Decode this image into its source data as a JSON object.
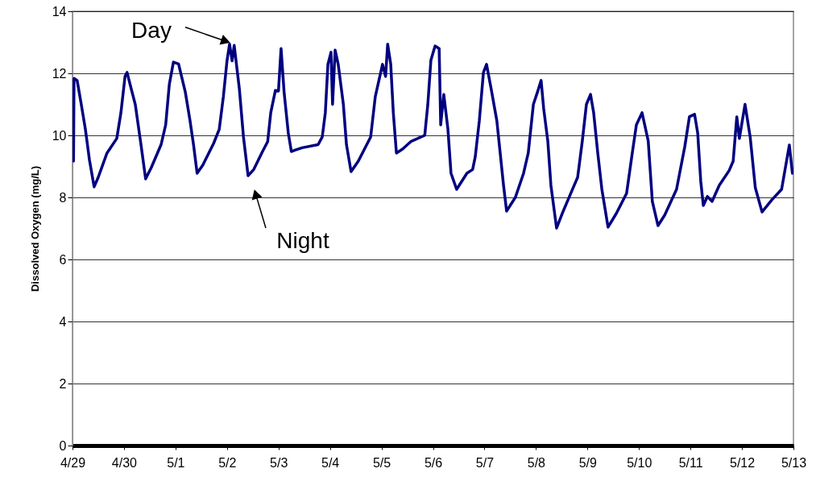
{
  "chart_data": {
    "type": "line",
    "ylabel": "Dissolved Oxygen (mg/L)",
    "x": [
      "--04-29T00:29",
      "--04-29T00:43",
      "--04-29T02:10",
      "--04-29T04:05",
      "--04-29T06:00",
      "--04-29T07:55",
      "--04-29T10:05",
      "--04-29T12:00",
      "--04-29T16:05",
      "--04-29T20:38",
      "--04-29T22:34",
      "--04-30T00:29",
      "--04-30T01:26",
      "--04-30T03:22",
      "--04-30T05:17",
      "--04-30T07:55",
      "--04-30T10:05",
      "--04-30T12:43",
      "--04-30T17:17",
      "--04-30T19:26",
      "--04-30T21:07",
      "--04-30T23:02",
      "--05-01T01:26",
      "--05-01T04:34",
      "--05-01T06:43",
      "--05-01T08:24",
      "--05-01T10:05",
      "--05-01T12:43",
      "--05-01T17:46",
      "--05-01T20:24",
      "--05-01T22:19",
      "--05-02T00:00",
      "--05-02T01:12",
      "--05-02T02:24",
      "--05-02T03:22",
      "--05-02T05:46",
      "--05-02T07:41",
      "--05-02T09:50",
      "--05-02T12:29",
      "--05-02T16:34",
      "--05-02T18:58",
      "--05-02T20:24",
      "--05-02T22:34",
      "--05-03T00:00",
      "--05-03T01:12",
      "--05-03T02:38",
      "--05-03T04:34",
      "--05-03T06:00",
      "--05-03T07:55",
      "--05-03T11:02",
      "--05-03T18:29",
      "--05-03T20:24",
      "--05-03T21:50",
      "--05-03T23:02",
      "--05-04T00:29",
      "--05-04T01:12",
      "--05-04T02:24",
      "--05-04T03:50",
      "--05-04T06:14",
      "--05-04T07:41",
      "--05-04T09:50",
      "--05-04T13:12",
      "--05-04T18:58",
      "--05-04T21:07",
      "--05-05T00:29",
      "--05-05T01:55",
      "--05-05T02:53",
      "--05-05T04:19",
      "--05-05T05:31",
      "--05-05T06:58",
      "--05-05T09:50",
      "--05-05T13:41",
      "--05-05T20:10",
      "--05-05T21:36",
      "--05-05T23:02",
      "--05-06T00:58",
      "--05-06T02:53",
      "--05-06T03:36",
      "--05-06T05:02",
      "--05-06T06:58",
      "--05-06T08:24",
      "--05-06T11:02",
      "--05-06T15:50",
      "--05-06T18:29",
      "--05-06T19:41",
      "--05-06T21:36",
      "--05-06T23:31",
      "--05-07T00:58",
      "--05-07T03:07",
      "--05-07T05:46",
      "--05-07T08:53",
      "--05-07T10:19",
      "--05-07T14:24",
      "--05-07T18:14",
      "--05-07T20:24",
      "--05-07T22:48",
      "--05-08T00:58",
      "--05-08T02:24",
      "--05-08T03:36",
      "--05-08T05:31",
      "--05-08T06:58",
      "--05-08T09:36",
      "--05-08T12:14",
      "--05-08T17:31",
      "--05-08T19:26",
      "--05-08T21:36",
      "--05-08T23:31",
      "--05-09T01:26",
      "--05-09T02:53",
      "--05-09T04:48",
      "--05-09T06:43",
      "--05-09T09:36",
      "--05-09T13:26",
      "--05-09T18:14",
      "--05-09T20:53",
      "--05-09T22:48",
      "--05-10T01:26",
      "--05-10T04:19",
      "--05-10T06:14",
      "--05-10T08:53",
      "--05-10T12:00",
      "--05-10T17:31",
      "--05-10T21:22",
      "--05-10T23:31",
      "--05-11T01:55",
      "--05-11T03:22",
      "--05-11T04:48",
      "--05-11T06:00",
      "--05-11T07:55",
      "--05-11T10:05",
      "--05-11T13:26",
      "--05-11T18:00",
      "--05-11T19:55",
      "--05-11T21:36",
      "--05-11T22:48",
      "--05-12T01:26",
      "--05-12T03:50",
      "--05-12T06:14",
      "--05-12T09:22",
      "--05-12T13:55",
      "--05-12T18:29",
      "--05-12T22:05",
      "--05-12T23:31"
    ],
    "series": [
      {
        "color": "#000080",
        "values": [
          9.17,
          11.84,
          11.77,
          11.0,
          10.2,
          9.2,
          8.34,
          8.65,
          9.43,
          9.9,
          10.73,
          11.9,
          12.03,
          11.5,
          10.99,
          9.7,
          8.6,
          8.96,
          9.7,
          10.34,
          11.64,
          12.36,
          12.3,
          11.4,
          10.5,
          9.7,
          8.78,
          9.04,
          9.74,
          10.2,
          11.25,
          12.4,
          12.94,
          12.4,
          12.9,
          11.5,
          9.95,
          8.7,
          8.9,
          9.48,
          9.8,
          10.73,
          11.45,
          11.43,
          12.8,
          11.38,
          10.08,
          9.48,
          9.53,
          9.6,
          9.7,
          9.95,
          10.73,
          12.29,
          12.68,
          11.0,
          12.75,
          12.29,
          11.0,
          9.7,
          8.83,
          9.17,
          9.95,
          11.25,
          12.29,
          11.9,
          12.94,
          12.29,
          10.73,
          9.43,
          9.56,
          9.8,
          10.0,
          11.0,
          12.42,
          12.88,
          12.8,
          10.34,
          11.32,
          10.2,
          8.78,
          8.26,
          8.78,
          8.9,
          9.3,
          10.47,
          12.03,
          12.29,
          11.5,
          10.47,
          8.39,
          7.56,
          8.0,
          8.78,
          9.43,
          11.0,
          11.45,
          11.77,
          10.86,
          9.82,
          8.39,
          7.01,
          7.48,
          8.34,
          8.65,
          9.82,
          11.0,
          11.32,
          10.73,
          9.43,
          8.26,
          7.04,
          7.48,
          8.13,
          9.43,
          10.34,
          10.73,
          9.82,
          7.87,
          7.09,
          7.43,
          8.26,
          9.64,
          10.6,
          10.68,
          10.08,
          8.52,
          7.74,
          8.03,
          7.87,
          8.39,
          8.86,
          9.17,
          10.6,
          9.9,
          11.0,
          9.95,
          8.31,
          7.53,
          7.92,
          8.26,
          9.69,
          8.78
        ]
      }
    ],
    "xlim": [
      "--04-29",
      "--05-13"
    ],
    "xticks": [
      {
        "value": "--04-29",
        "label": "4/29"
      },
      {
        "value": "--04-30",
        "label": "4/30"
      },
      {
        "value": "--05-01",
        "label": "5/1"
      },
      {
        "value": "--05-02",
        "label": "5/2"
      },
      {
        "value": "--05-03",
        "label": "5/3"
      },
      {
        "value": "--05-04",
        "label": "5/4"
      },
      {
        "value": "--05-05",
        "label": "5/5"
      },
      {
        "value": "--05-06",
        "label": "5/6"
      },
      {
        "value": "--05-07",
        "label": "5/7"
      },
      {
        "value": "--05-08",
        "label": "5/8"
      },
      {
        "value": "--05-09",
        "label": "5/9"
      },
      {
        "value": "--05-10",
        "label": "5/10"
      },
      {
        "value": "--05-11",
        "label": "5/11"
      },
      {
        "value": "--05-12",
        "label": "5/12"
      },
      {
        "value": "--05-13",
        "label": "5/13"
      }
    ],
    "ylim": [
      0,
      14
    ],
    "yticks": [
      0,
      2,
      4,
      6,
      8,
      10,
      12,
      14
    ],
    "grid": "y",
    "line_style": "solid",
    "annotations": [
      {
        "text": "Day",
        "x": "--05-02T01:12",
        "y": 12.94
      },
      {
        "text": "Night",
        "x": "--05-02T09:50",
        "y": 8.7
      }
    ]
  }
}
